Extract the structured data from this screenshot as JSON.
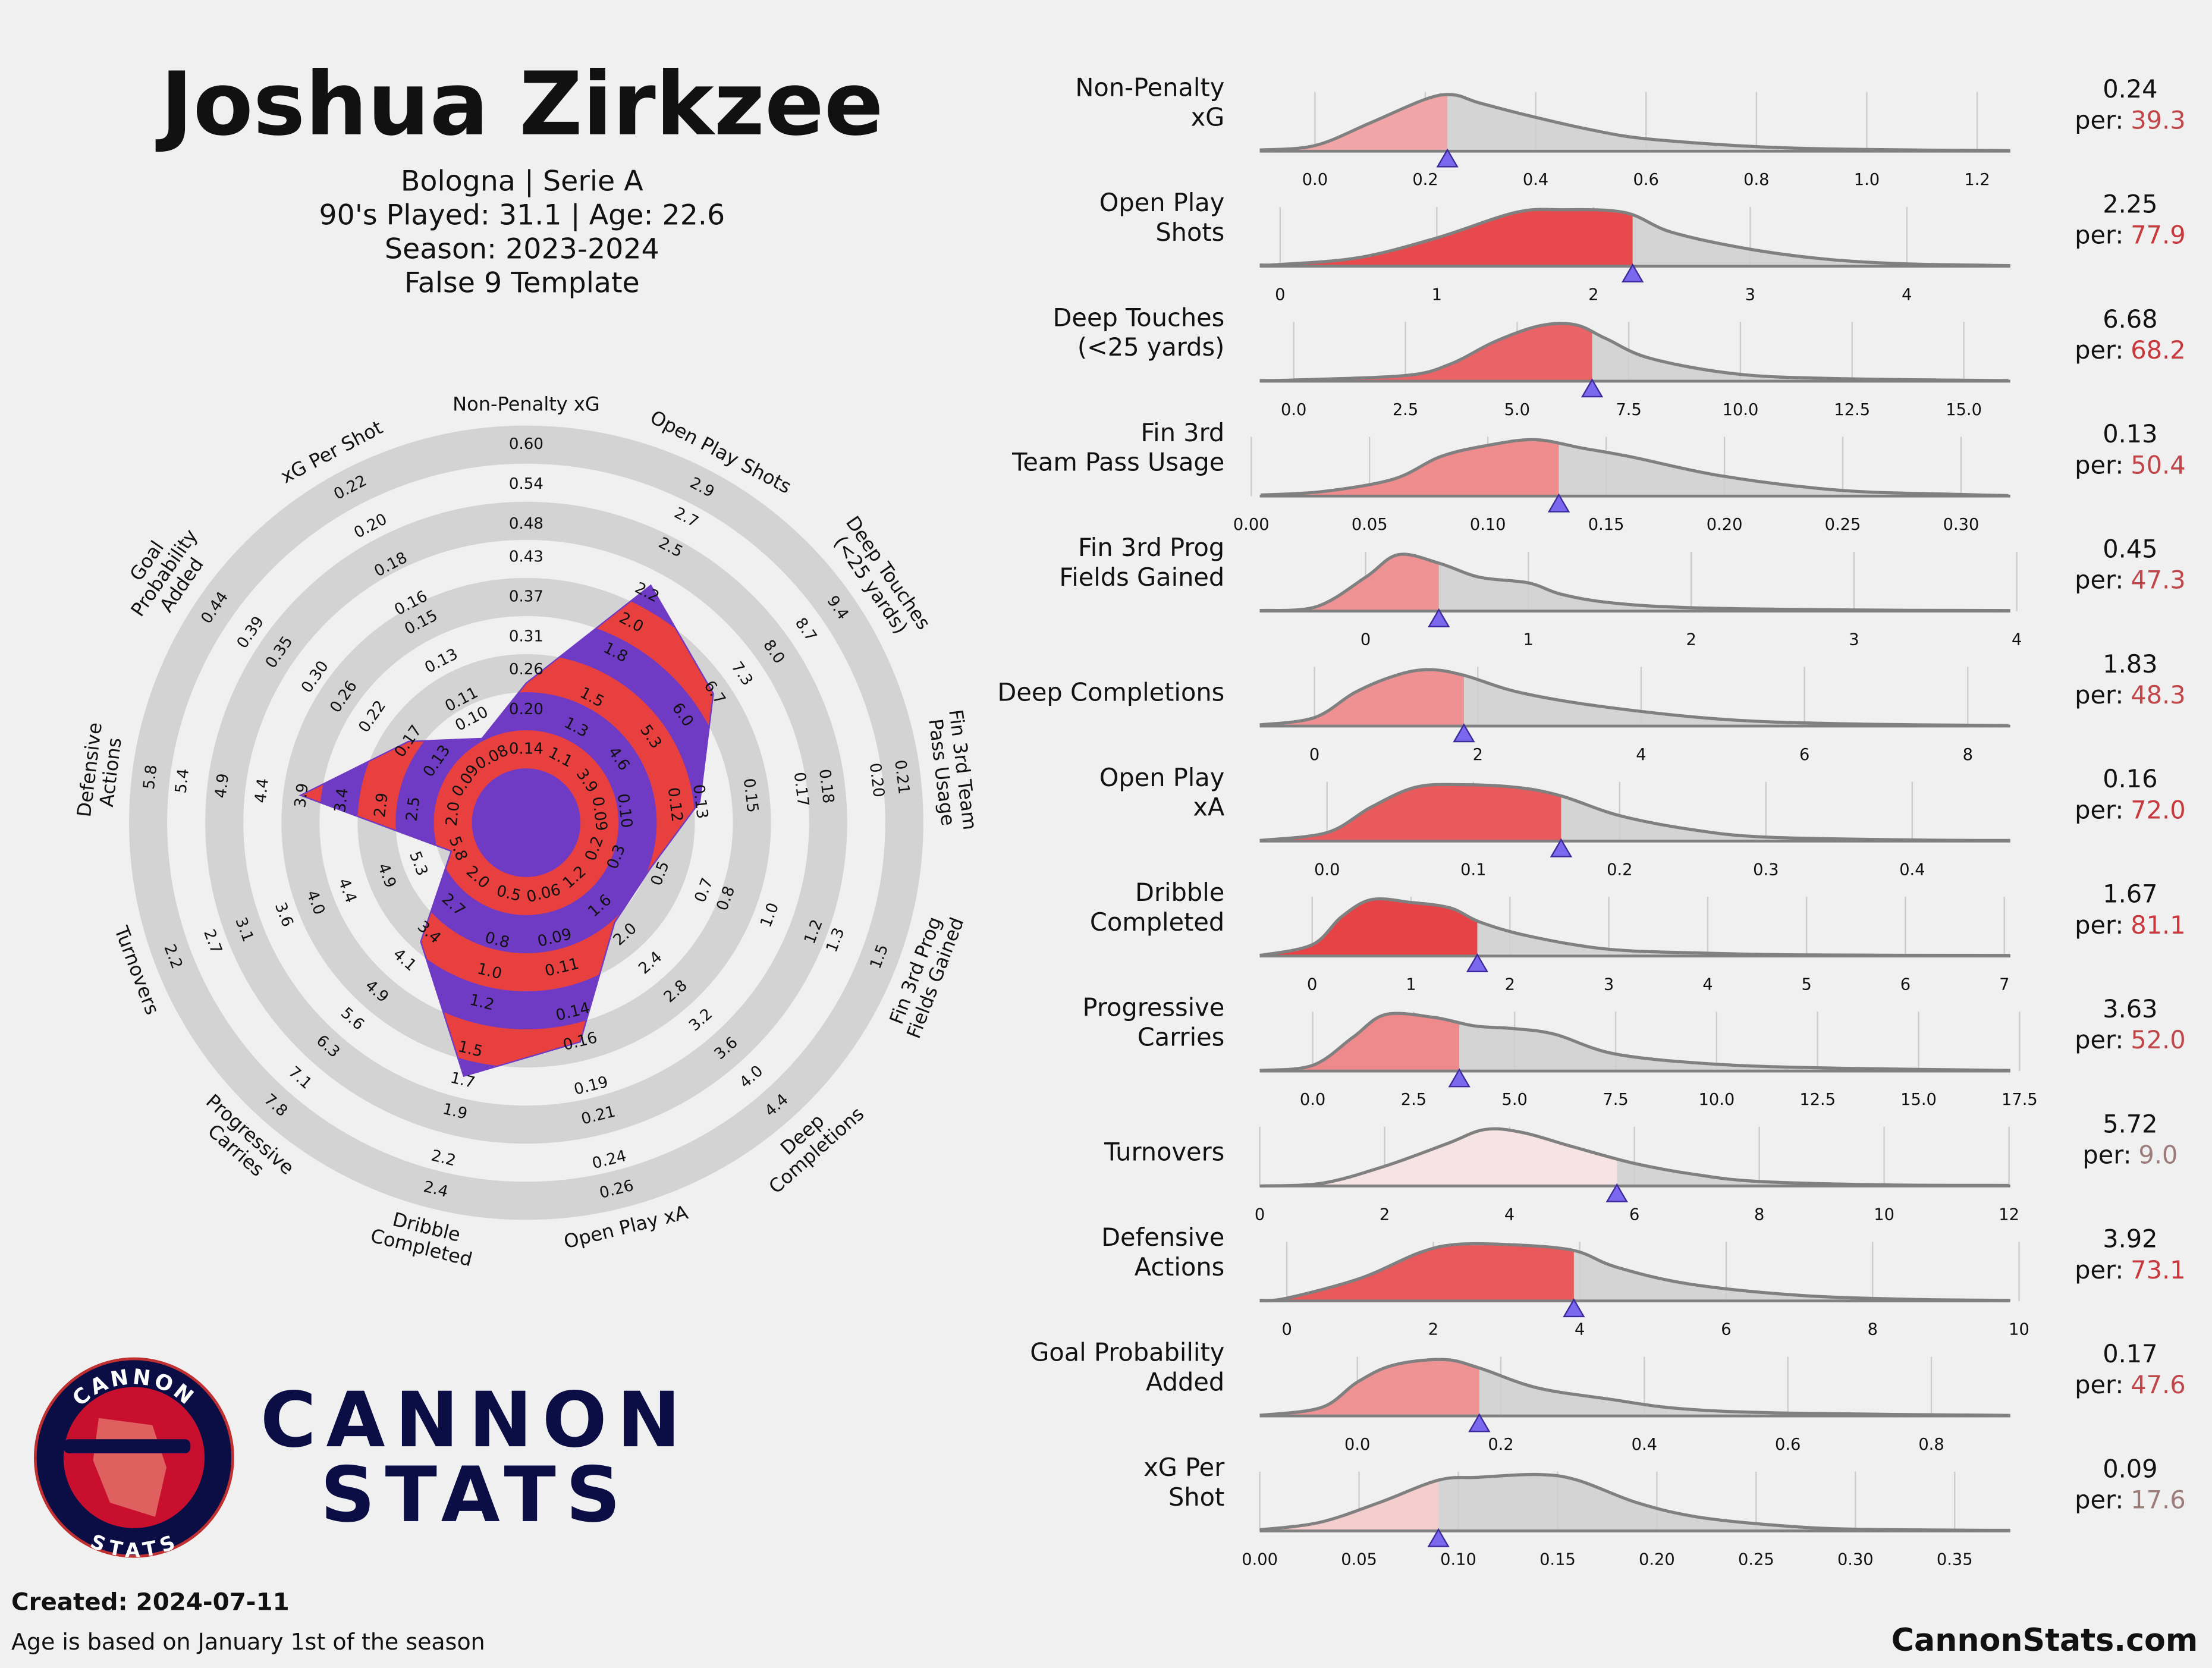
{
  "header": {
    "title": "Joshua Zirkzee",
    "lines": [
      "Bologna | Serie A",
      "90's Played: 31.1 | Age: 22.6",
      "Season: 2023-2024",
      "False 9 Template"
    ]
  },
  "logo": {
    "ring_top": "CANNON",
    "ring_bottom": "STATS",
    "wordmark": [
      "CANNON",
      "STATS"
    ]
  },
  "footer": {
    "created": "Created: 2024-07-11",
    "note": "Age is based on January 1st of the season",
    "site": "CannonStats.com"
  },
  "chart_data": [
    {
      "type": "radar",
      "colors": {
        "player": "#6f3bc4",
        "band": "#e8403f",
        "ring": "#d3d3d3"
      },
      "categories": [
        [
          "Non-Penalty xG"
        ],
        [
          "Open Play Shots"
        ],
        [
          "Deep Touches",
          "(<25 yards)"
        ],
        [
          "Fin 3rd Team",
          "Pass Usage"
        ],
        [
          "Fin 3rd Prog",
          "Fields Gained"
        ],
        [
          "Deep",
          "Completions"
        ],
        [
          "Open Play xA"
        ],
        [
          "Dribble",
          "Completed"
        ],
        [
          "Progressive",
          "Carries"
        ],
        [
          "Turnovers"
        ],
        [
          "Defensive",
          "Actions"
        ],
        [
          "Goal",
          "Probability",
          "Added"
        ],
        [
          "xG Per Shot"
        ]
      ],
      "values": [
        0.24,
        2.25,
        6.68,
        0.13,
        0.45,
        1.83,
        0.16,
        1.67,
        3.63,
        5.72,
        3.92,
        0.17,
        0.09
      ],
      "rlims": [
        [
          0.14,
          0.6
        ],
        [
          1.1,
          2.9
        ],
        [
          3.9,
          9.4
        ],
        [
          0.09,
          0.21
        ],
        [
          0.2,
          1.5
        ],
        [
          1.2,
          4.4
        ],
        [
          0.06,
          0.26
        ],
        [
          0.5,
          2.4
        ],
        [
          2,
          7.8
        ],
        [
          5.8,
          2.2
        ],
        [
          2,
          5.8
        ],
        [
          0.09,
          0.44
        ],
        [
          0.08,
          0.22
        ]
      ],
      "ticks": [
        [
          0.14,
          {
            "value": 0.2,
            "label": "0.20"
          },
          0.26,
          0.31,
          0.37,
          0.43,
          0.48,
          0.54,
          {
            "value": 0.6,
            "label": "0.60"
          }
        ],
        [
          1.1,
          1.3,
          1.5,
          1.8,
          {
            "value": 2,
            "label": "2.0"
          },
          2.2,
          2.5,
          2.7,
          2.9
        ],
        [
          3.9,
          4.6,
          5.3,
          {
            "value": 6,
            "label": "6.0"
          },
          6.7,
          7.3,
          {
            "value": 8,
            "label": "8.0"
          },
          8.7,
          9.4
        ],
        [
          0.09,
          {
            "value": 0.1,
            "label": "0.10"
          },
          0.12,
          0.13,
          0.15,
          0.17,
          0.18,
          {
            "value": 0.2,
            "label": "0.20"
          },
          0.21
        ],
        [
          0.2,
          0.3,
          0.5,
          0.7,
          0.8,
          {
            "value": 1,
            "label": "1.0"
          },
          1.2,
          1.3,
          1.5
        ],
        [
          1.2,
          1.6,
          {
            "value": 2,
            "label": "2.0"
          },
          2.4,
          2.8,
          3.2,
          3.6,
          {
            "value": 4,
            "label": "4.0"
          },
          4.4
        ],
        [
          0.06,
          0.09,
          0.11,
          0.14,
          0.16,
          0.19,
          0.21,
          0.24,
          0.26
        ],
        [
          0.5,
          0.8,
          {
            "value": 1,
            "label": "1.0"
          },
          1.2,
          1.5,
          1.7,
          1.9,
          2.2,
          2.4
        ],
        [
          {
            "value": 2,
            "label": "2.0"
          },
          2.7,
          3.4,
          4.1,
          4.9,
          5.6,
          6.3,
          7.1,
          7.8
        ],
        [
          5.8,
          5.3,
          4.9,
          4.4,
          {
            "value": 4,
            "label": "4.0"
          },
          3.6,
          3.1,
          2.7,
          2.2
        ],
        [
          {
            "value": 2,
            "label": "2.0"
          },
          2.5,
          2.9,
          3.4,
          3.9,
          4.4,
          4.9,
          5.4,
          5.8
        ],
        [
          0.09,
          0.13,
          0.17,
          0.22,
          0.26,
          {
            "value": 0.3,
            "label": "0.30"
          },
          0.35,
          0.39,
          0.44
        ],
        [
          0.08,
          {
            "value": 0.1,
            "label": "0.10"
          },
          0.11,
          0.13,
          0.15,
          0.16,
          0.18,
          {
            "value": 0.2,
            "label": "0.20"
          },
          0.22
        ]
      ]
    },
    {
      "type": "density",
      "label": [
        "Non-Penalty",
        "xG"
      ],
      "value": 0.24,
      "percentile": 39.3,
      "percentile_prefix": "per:",
      "color": "#f2a5a6",
      "label_color": "#c0464a",
      "xlim": [
        -0.1,
        1.26
      ],
      "xticks": [
        {
          "value": 0,
          "label": "0.0"
        },
        0.2,
        0.4,
        0.6,
        0.8,
        {
          "value": 1,
          "label": "1.0"
        },
        1.2
      ],
      "density_x": [
        -0.1,
        0,
        0.1,
        0.2,
        0.25,
        0.3,
        0.4,
        0.5,
        0.6,
        0.8,
        1.0,
        1.26
      ],
      "density": [
        0.02,
        0.1,
        0.5,
        0.92,
        1.0,
        0.85,
        0.6,
        0.38,
        0.22,
        0.08,
        0.03,
        0.01
      ]
    },
    {
      "type": "density",
      "label": [
        "Open Play",
        "Shots"
      ],
      "value": 2.25,
      "percentile": 77.9,
      "percentile_prefix": "per:",
      "color": "#e8494d",
      "label_color": "#c8383c",
      "xlim": [
        -0.13,
        4.66
      ],
      "xticks": [
        0,
        1,
        2,
        3,
        4
      ],
      "density_x": [
        -0.13,
        0,
        0.5,
        1,
        1.5,
        1.8,
        2.2,
        2.5,
        3,
        3.5,
        4,
        4.66
      ],
      "density": [
        0.02,
        0.03,
        0.15,
        0.5,
        0.95,
        1.0,
        0.95,
        0.6,
        0.3,
        0.12,
        0.04,
        0.01
      ]
    },
    {
      "type": "density",
      "label": [
        "Deep Touches",
        "(<25 yards)"
      ],
      "value": 6.68,
      "percentile": 68.2,
      "percentile_prefix": "per:",
      "color": "#ea6467",
      "label_color": "#c8383c",
      "xlim": [
        -0.76,
        16.04
      ],
      "xticks": [
        {
          "value": 0,
          "label": "0.0"
        },
        2.5,
        {
          "value": 5,
          "label": "5.0"
        },
        7.5,
        {
          "value": 10,
          "label": "10.0"
        },
        12.5,
        {
          "value": 15,
          "label": "15.0"
        }
      ],
      "density_x": [
        -0.76,
        0,
        2.5,
        3.5,
        4.5,
        5.5,
        6.3,
        7,
        8,
        10,
        12.5,
        16
      ],
      "density": [
        0.01,
        0.02,
        0.1,
        0.3,
        0.7,
        0.98,
        1.0,
        0.75,
        0.4,
        0.12,
        0.04,
        0.01
      ]
    },
    {
      "type": "density",
      "label": [
        "Fin 3rd",
        "Team Pass Usage"
      ],
      "value": 0.13,
      "percentile": 50.4,
      "percentile_prefix": "per:",
      "color": "#ee8c8e",
      "label_color": "#c0464a",
      "xlim": [
        0.0036,
        0.3208
      ],
      "xticks": [
        {
          "value": 0,
          "label": "0.00"
        },
        0.05,
        {
          "value": 0.1,
          "label": "0.10"
        },
        0.15,
        {
          "value": 0.2,
          "label": "0.20"
        },
        0.25,
        {
          "value": 0.3,
          "label": "0.30"
        }
      ],
      "density_x": [
        0.004,
        0.03,
        0.06,
        0.08,
        0.1,
        0.12,
        0.14,
        0.16,
        0.2,
        0.25,
        0.3,
        0.32
      ],
      "density": [
        0.02,
        0.08,
        0.3,
        0.7,
        0.9,
        1.0,
        0.85,
        0.7,
        0.35,
        0.1,
        0.03,
        0.01
      ]
    },
    {
      "type": "density",
      "label": [
        "Fin 3rd Prog",
        "Fields Gained"
      ],
      "value": 0.45,
      "percentile": 47.3,
      "percentile_prefix": "per:",
      "color": "#ef9294",
      "label_color": "#c0464a",
      "xlim": [
        -0.65,
        3.96
      ],
      "xticks": [
        0,
        1,
        2,
        3,
        4
      ],
      "density_x": [
        -0.65,
        -0.3,
        0,
        0.2,
        0.45,
        0.7,
        1.0,
        1.2,
        1.5,
        2,
        3,
        3.96
      ],
      "density": [
        0.01,
        0.08,
        0.6,
        1.0,
        0.85,
        0.6,
        0.5,
        0.3,
        0.15,
        0.06,
        0.02,
        0.01
      ]
    },
    {
      "type": "density",
      "label": [
        "Deep Completions"
      ],
      "value": 1.83,
      "percentile": 48.3,
      "percentile_prefix": "per:",
      "color": "#ef9092",
      "label_color": "#c0464a",
      "xlim": [
        -0.67,
        8.52
      ],
      "xticks": [
        0,
        2,
        4,
        6,
        8
      ],
      "density_x": [
        -0.67,
        0,
        0.5,
        1,
        1.4,
        1.83,
        2.5,
        3.5,
        5,
        6.5,
        8.5
      ],
      "density": [
        0.02,
        0.15,
        0.6,
        0.9,
        1.0,
        0.9,
        0.6,
        0.35,
        0.12,
        0.04,
        0.01
      ]
    },
    {
      "type": "density",
      "label": [
        "Open Play",
        "xA"
      ],
      "value": 0.16,
      "percentile": 72.0,
      "percentile_label": "72.0",
      "percentile_prefix": "per:",
      "color": "#e95a5d",
      "label_color": "#c8383c",
      "xlim": [
        -0.046,
        0.467
      ],
      "xticks": [
        {
          "value": 0,
          "label": "0.0"
        },
        0.1,
        0.2,
        0.3,
        0.4
      ],
      "density_x": [
        -0.046,
        0,
        0.03,
        0.06,
        0.09,
        0.13,
        0.16,
        0.2,
        0.25,
        0.3,
        0.4,
        0.467
      ],
      "density": [
        0.01,
        0.15,
        0.6,
        0.95,
        1.0,
        0.95,
        0.8,
        0.45,
        0.2,
        0.07,
        0.02,
        0.01
      ]
    },
    {
      "type": "density",
      "label": [
        "Dribble",
        "Completed"
      ],
      "value": 1.67,
      "percentile": 81.1,
      "percentile_prefix": "per:",
      "color": "#e74245",
      "label_color": "#c8383c",
      "xlim": [
        -0.53,
        7.06
      ],
      "xticks": [
        0,
        1,
        2,
        3,
        4,
        5,
        6,
        7
      ],
      "density_x": [
        -0.53,
        0,
        0.3,
        0.6,
        1,
        1.4,
        1.7,
        2.2,
        3,
        4,
        5,
        7.06
      ],
      "density": [
        0.01,
        0.2,
        0.7,
        1.0,
        0.95,
        0.85,
        0.6,
        0.35,
        0.12,
        0.05,
        0.02,
        0.01
      ]
    },
    {
      "type": "density",
      "label": [
        "Progressive",
        "Carries"
      ],
      "value": 3.63,
      "percentile": 52.0,
      "percentile_label": "52.0",
      "percentile_prefix": "per:",
      "color": "#ee8a8c",
      "label_color": "#c0464a",
      "xlim": [
        -1.31,
        17.27
      ],
      "xticks": [
        {
          "value": 0,
          "label": "0.0"
        },
        2.5,
        {
          "value": 5,
          "label": "5.0"
        },
        7.5,
        {
          "value": 10,
          "label": "10.0"
        },
        12.5,
        {
          "value": 15,
          "label": "15.0"
        },
        17.5
      ],
      "density_x": [
        -1.31,
        0,
        1,
        1.8,
        3,
        4,
        5,
        6,
        7.5,
        10,
        13,
        17.27
      ],
      "density": [
        0.01,
        0.1,
        0.6,
        1.0,
        0.95,
        0.8,
        0.75,
        0.65,
        0.3,
        0.12,
        0.05,
        0.01
      ]
    },
    {
      "type": "density",
      "label": [
        "Turnovers"
      ],
      "value": 5.72,
      "percentile": 9.0,
      "percentile_label": "9.0",
      "percentile_prefix": "per:",
      "color": "#f6e3e3",
      "label_color": "#9c7b7b",
      "xlim": [
        0,
        12.02
      ],
      "xticks": [
        0,
        2,
        4,
        6,
        8,
        10,
        12
      ],
      "density_x": [
        0,
        1,
        2,
        3,
        3.6,
        4.2,
        5,
        6,
        7,
        8,
        10,
        12
      ],
      "density": [
        0,
        0.05,
        0.35,
        0.75,
        1.0,
        0.95,
        0.7,
        0.4,
        0.2,
        0.08,
        0.02,
        0.01
      ]
    },
    {
      "type": "density",
      "label": [
        "Defensive",
        "Actions"
      ],
      "value": 3.92,
      "percentile": 73.1,
      "percentile_prefix": "per:",
      "color": "#e9585b",
      "label_color": "#c8383c",
      "xlim": [
        -0.37,
        9.88
      ],
      "xticks": [
        0,
        2,
        4,
        6,
        8,
        10
      ],
      "density_x": [
        -0.37,
        0,
        1,
        1.8,
        2.3,
        3,
        3.9,
        4.5,
        5.5,
        7,
        8.5,
        9.88
      ],
      "density": [
        0.01,
        0.05,
        0.4,
        0.85,
        1.0,
        1.0,
        0.9,
        0.6,
        0.3,
        0.1,
        0.03,
        0.01
      ]
    },
    {
      "type": "density",
      "label": [
        "Goal Probability",
        "Added"
      ],
      "value": 0.17,
      "percentile": 47.6,
      "percentile_prefix": "per:",
      "color": "#ef9294",
      "label_color": "#c0464a",
      "xlim": [
        -0.136,
        0.91
      ],
      "xticks": [
        {
          "value": 0,
          "label": "0.0"
        },
        0.2,
        0.4,
        0.6,
        0.8
      ],
      "density_x": [
        -0.136,
        -0.05,
        0,
        0.05,
        0.12,
        0.17,
        0.25,
        0.35,
        0.45,
        0.6,
        0.91
      ],
      "density": [
        0.01,
        0.15,
        0.6,
        0.9,
        1.0,
        0.85,
        0.5,
        0.3,
        0.13,
        0.05,
        0.01
      ]
    },
    {
      "type": "density",
      "label": [
        "xG Per",
        "Shot"
      ],
      "value": 0.09,
      "percentile": 17.6,
      "percentile_prefix": "per:",
      "color": "#f4cdcd",
      "label_color": "#9c7b7b",
      "xlim": [
        0,
        0.378
      ],
      "xticks": [
        {
          "value": 0,
          "label": "0.00"
        },
        0.05,
        {
          "value": 0.1,
          "label": "0.10"
        },
        0.15,
        {
          "value": 0.2,
          "label": "0.20"
        },
        0.25,
        {
          "value": 0.3,
          "label": "0.30"
        },
        0.35
      ],
      "density_x": [
        0,
        0.03,
        0.06,
        0.09,
        0.11,
        0.14,
        0.16,
        0.19,
        0.22,
        0.26,
        0.3,
        0.378
      ],
      "density": [
        0.02,
        0.15,
        0.5,
        0.9,
        0.95,
        1.0,
        0.9,
        0.5,
        0.25,
        0.1,
        0.03,
        0.01
      ]
    }
  ]
}
